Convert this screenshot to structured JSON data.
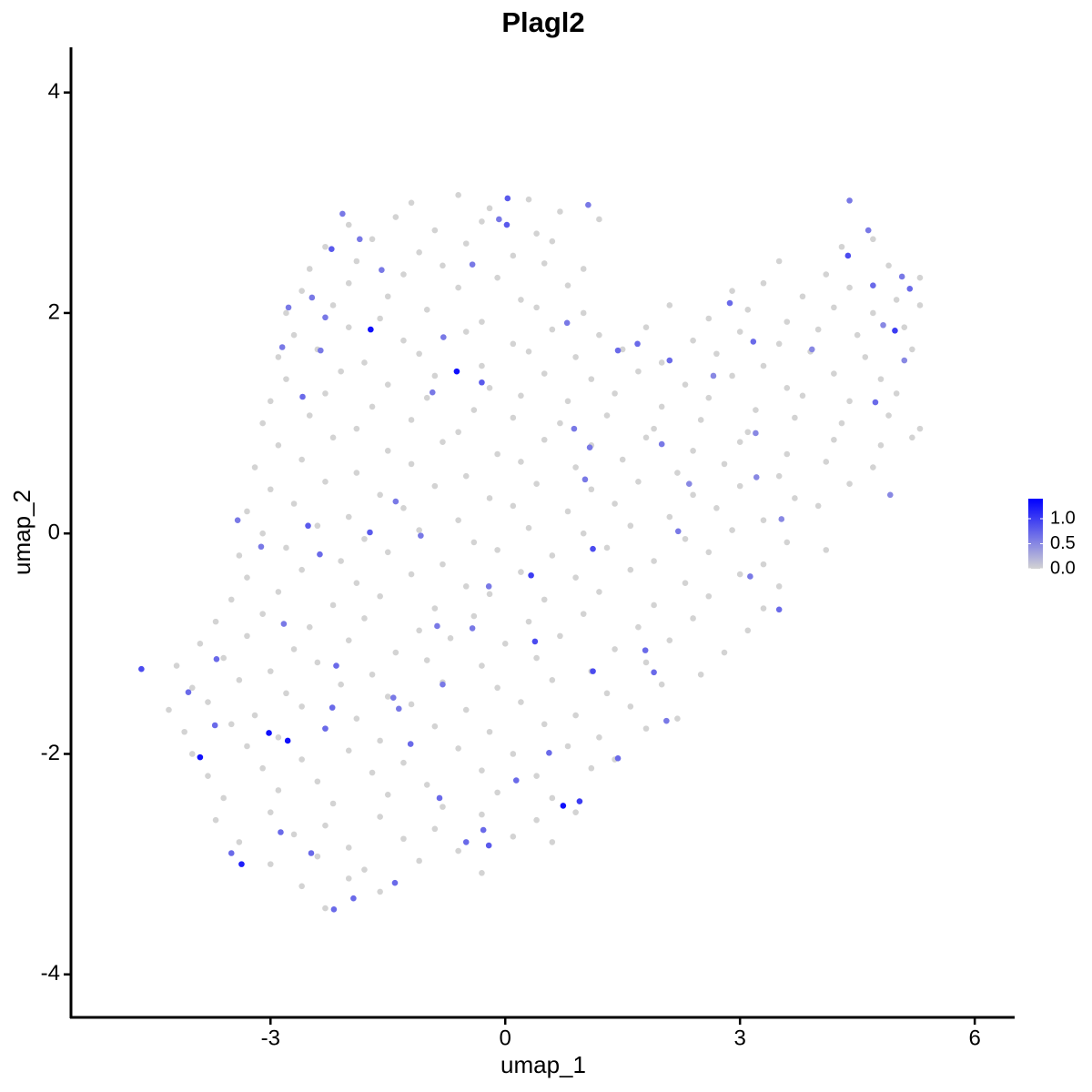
{
  "chart_data": {
    "type": "scatter",
    "title": "Plagl2",
    "x_label": "umap_1",
    "y_label": "umap_2",
    "xlim": [
      -5.55,
      6.51
    ],
    "ylim": [
      -4.39,
      4.41
    ],
    "xticks": [
      -3,
      0,
      3,
      6
    ],
    "yticks": [
      -4,
      -2,
      0,
      2,
      4
    ],
    "clim": [
      0,
      1.4
    ],
    "cticks": [
      {
        "value": 0,
        "label": "0.0"
      },
      {
        "value": 0.5,
        "label": "0.5"
      },
      {
        "value": 1,
        "label": "1.0"
      }
    ],
    "low_color": "#d3d3d3",
    "high_color": "#0000ff",
    "x": [
      -1.2,
      -0.6,
      -0.2,
      0.3,
      0.7,
      -2.0,
      -1.4,
      -0.9,
      -0.3,
      0.4,
      1.2,
      -2.3,
      -1.7,
      -1.1,
      -0.5,
      0.1,
      0.6,
      4.3,
      4.7,
      -2.5,
      -1.9,
      -1.3,
      -0.8,
      -0.1,
      0.5,
      1.0,
      3.5,
      4.1,
      4.9,
      5.3,
      -2.6,
      -2.0,
      -1.5,
      -0.6,
      0.2,
      0.8,
      2.9,
      3.3,
      3.8,
      4.4,
      5.0,
      -2.8,
      -2.2,
      -1.6,
      -1.0,
      -0.3,
      0.4,
      1.0,
      2.1,
      2.6,
      3.1,
      3.6,
      4.2,
      4.7,
      5.3,
      -2.7,
      -2.0,
      -1.3,
      -0.5,
      0.1,
      0.6,
      1.2,
      1.8,
      2.4,
      3.0,
      3.5,
      4.0,
      4.5,
      5.1,
      -2.9,
      -2.4,
      -1.8,
      -1.1,
      -0.3,
      0.3,
      0.9,
      1.5,
      2.0,
      2.7,
      3.3,
      3.9,
      4.6,
      5.2,
      -2.8,
      -2.1,
      -1.5,
      -0.9,
      -0.2,
      0.5,
      1.1,
      1.7,
      2.3,
      2.9,
      3.6,
      4.2,
      4.8,
      -3.0,
      -2.3,
      -1.7,
      -1.0,
      -0.4,
      0.2,
      0.8,
      1.4,
      2.0,
      2.6,
      3.2,
      3.8,
      4.4,
      5.0,
      -3.1,
      -2.5,
      -1.9,
      -1.2,
      -0.6,
      0.1,
      0.7,
      1.3,
      1.9,
      2.5,
      3.1,
      3.7,
      4.3,
      4.9,
      5.3,
      -2.9,
      -2.2,
      -1.5,
      -0.8,
      -0.1,
      0.5,
      1.1,
      1.8,
      2.4,
      3.0,
      3.6,
      4.2,
      4.8,
      5.2,
      -3.2,
      -2.6,
      -1.9,
      -1.2,
      -0.5,
      0.2,
      0.9,
      1.5,
      2.2,
      2.8,
      3.5,
      4.1,
      4.7,
      -3.0,
      -2.3,
      -1.6,
      -0.9,
      -0.2,
      0.4,
      1.1,
      1.7,
      2.4,
      3.0,
      3.7,
      4.4,
      -3.3,
      -2.7,
      -2.0,
      -1.3,
      -0.6,
      0.1,
      0.8,
      1.4,
      2.1,
      2.7,
      3.3,
      4.0,
      -3.1,
      -2.4,
      -1.8,
      -1.1,
      -0.4,
      0.3,
      1.0,
      1.6,
      2.3,
      2.9,
      3.6,
      -3.4,
      -2.8,
      -2.1,
      -1.5,
      -0.8,
      -0.1,
      0.6,
      1.3,
      1.9,
      2.6,
      3.3,
      4.1,
      -3.3,
      -2.6,
      -1.9,
      -1.2,
      -0.5,
      0.2,
      0.9,
      1.6,
      2.3,
      3.0,
      3.5,
      -3.5,
      -2.9,
      -2.2,
      -1.6,
      -0.9,
      -0.2,
      0.5,
      1.2,
      1.9,
      2.6,
      3.3,
      -3.7,
      -3.1,
      -2.5,
      -1.8,
      -1.1,
      -0.4,
      0.3,
      1.0,
      1.7,
      2.4,
      3.1,
      -3.9,
      -3.3,
      -2.7,
      -2.0,
      -1.4,
      -0.7,
      0.0,
      0.7,
      1.4,
      2.1,
      2.8,
      -4.2,
      -3.6,
      -3.0,
      -2.4,
      -1.7,
      -1.0,
      -0.3,
      0.4,
      1.1,
      1.8,
      2.5,
      -4.0,
      -3.4,
      -2.8,
      -2.1,
      -1.5,
      -0.8,
      -0.1,
      0.6,
      1.3,
      2.0,
      -4.3,
      -3.8,
      -3.2,
      -2.6,
      -1.9,
      -1.2,
      -0.5,
      0.2,
      0.9,
      1.6,
      2.2,
      -4.1,
      -3.5,
      -2.9,
      -2.3,
      -1.6,
      -0.9,
      -0.2,
      0.5,
      1.2,
      1.8,
      -4.0,
      -3.3,
      -2.6,
      -2.0,
      -1.3,
      -0.6,
      0.1,
      0.8,
      1.4,
      -3.8,
      -3.1,
      -2.4,
      -1.7,
      -1.0,
      -0.3,
      0.4,
      1.1,
      -3.6,
      -2.9,
      -2.2,
      -1.5,
      -0.8,
      -0.1,
      0.6,
      -3.7,
      -3.0,
      -2.3,
      -1.6,
      -0.9,
      -0.3,
      0.4,
      0.9,
      -3.4,
      -2.7,
      -2.0,
      -1.3,
      -0.6,
      0.1,
      0.6,
      -3.0,
      -2.4,
      -1.8,
      -1.1,
      -0.3,
      -2.6,
      -2.0,
      -1.6,
      -2.3,
      -1.72,
      -0.62,
      -3.02,
      -2.78,
      -3.9,
      -3.37,
      0.74,
      0.95,
      -4.65,
      0.33,
      1.12,
      1.12,
      4.98,
      4.38,
      -2.22,
      0.03,
      0.02,
      0.38,
      -1.73,
      -2.52,
      -0.3,
      -2.59,
      4.7,
      5.17,
      4.73,
      1.44,
      1.69,
      2.1,
      2.87,
      3.17,
      3.5,
      3.13,
      2.21,
      1.79,
      1.9,
      2.06,
      1.44,
      0.56,
      0.14,
      -0.28,
      -0.21,
      -0.5,
      -0.84,
      -1.41,
      -1.21,
      -1.94,
      -2.19,
      -2.48,
      -2.87,
      -3.5,
      -3.71,
      -4.05,
      -3.69,
      -2.21,
      -2.3,
      -3.42,
      -3.12,
      -2.37,
      -2.83,
      -2.16,
      -1.4,
      -1.08,
      -0.87,
      -0.42,
      -0.21,
      -0.8,
      -1.43,
      -1.36,
      -2.47,
      -2.3,
      -1.86,
      -1.58,
      -2.08,
      -2.77,
      -2.36,
      -2.85,
      -0.93,
      -0.79,
      0.79,
      -0.42,
      -0.08,
      1.06,
      0.88,
      1.08,
      1.02,
      2.0,
      2.35,
      3.21,
      3.2,
      3.92,
      4.92,
      5.1,
      4.83,
      4.64,
      4.4,
      5.07,
      3.53,
      2.66
    ],
    "y": [
      3.0,
      3.07,
      2.95,
      3.03,
      2.92,
      2.8,
      2.87,
      2.75,
      2.83,
      2.72,
      2.85,
      2.6,
      2.67,
      2.55,
      2.63,
      2.52,
      2.65,
      2.6,
      2.67,
      2.4,
      2.47,
      2.35,
      2.43,
      2.32,
      2.45,
      2.4,
      2.47,
      2.35,
      2.43,
      2.32,
      2.2,
      2.27,
      2.15,
      2.23,
      2.12,
      2.25,
      2.2,
      2.27,
      2.15,
      2.23,
      2.12,
      2.0,
      2.07,
      1.95,
      2.03,
      1.92,
      2.05,
      2.0,
      2.07,
      1.95,
      2.03,
      1.92,
      2.05,
      2.0,
      2.07,
      1.8,
      1.87,
      1.75,
      1.83,
      1.72,
      1.85,
      1.8,
      1.87,
      1.75,
      1.83,
      1.72,
      1.85,
      1.8,
      1.87,
      1.6,
      1.67,
      1.55,
      1.63,
      1.52,
      1.65,
      1.6,
      1.67,
      1.55,
      1.63,
      1.52,
      1.65,
      1.6,
      1.67,
      1.4,
      1.47,
      1.35,
      1.43,
      1.32,
      1.45,
      1.4,
      1.47,
      1.35,
      1.43,
      1.32,
      1.45,
      1.4,
      1.2,
      1.27,
      1.15,
      1.23,
      1.12,
      1.25,
      1.2,
      1.27,
      1.15,
      1.23,
      1.12,
      1.25,
      1.2,
      1.27,
      1.0,
      1.07,
      0.95,
      1.03,
      0.92,
      1.05,
      1.0,
      1.07,
      0.95,
      1.03,
      0.92,
      1.05,
      1.0,
      1.07,
      0.95,
      0.8,
      0.87,
      0.75,
      0.83,
      0.72,
      0.85,
      0.8,
      0.87,
      0.75,
      0.83,
      0.72,
      0.85,
      0.8,
      0.87,
      0.6,
      0.67,
      0.55,
      0.63,
      0.52,
      0.65,
      0.6,
      0.67,
      0.55,
      0.63,
      0.52,
      0.65,
      0.6,
      0.4,
      0.47,
      0.35,
      0.43,
      0.32,
      0.45,
      0.4,
      0.47,
      0.35,
      0.43,
      0.32,
      0.45,
      0.2,
      0.27,
      0.15,
      0.23,
      0.12,
      0.25,
      0.2,
      0.27,
      0.15,
      0.23,
      0.12,
      0.25,
      0,
      0.07,
      -0.05,
      0.03,
      -0.08,
      0.05,
      0,
      0.07,
      -0.05,
      0.03,
      -0.08,
      -0.2,
      -0.13,
      -0.25,
      -0.17,
      -0.28,
      -0.15,
      -0.2,
      -0.13,
      -0.25,
      -0.17,
      -0.28,
      -0.15,
      -0.4,
      -0.33,
      -0.45,
      -0.37,
      -0.48,
      -0.35,
      -0.4,
      -0.33,
      -0.45,
      -0.37,
      -0.48,
      -0.6,
      -0.53,
      -0.65,
      -0.57,
      -0.68,
      -0.55,
      -0.6,
      -0.53,
      -0.65,
      -0.57,
      -0.68,
      -0.8,
      -0.73,
      -0.85,
      -0.77,
      -0.88,
      -0.75,
      -0.8,
      -0.73,
      -0.85,
      -0.77,
      -0.88,
      -1.0,
      -0.93,
      -1.05,
      -0.97,
      -1.08,
      -0.95,
      -1.0,
      -0.93,
      -1.05,
      -0.97,
      -1.08,
      -1.2,
      -1.13,
      -1.25,
      -1.17,
      -1.28,
      -1.15,
      -1.2,
      -1.13,
      -1.25,
      -1.17,
      -1.28,
      -1.4,
      -1.33,
      -1.45,
      -1.37,
      -1.48,
      -1.35,
      -1.4,
      -1.33,
      -1.45,
      -1.37,
      -1.6,
      -1.53,
      -1.65,
      -1.57,
      -1.68,
      -1.55,
      -1.6,
      -1.53,
      -1.65,
      -1.57,
      -1.68,
      -1.8,
      -1.73,
      -1.85,
      -1.77,
      -1.88,
      -1.75,
      -1.8,
      -1.73,
      -1.85,
      -1.77,
      -2.0,
      -1.93,
      -2.05,
      -1.97,
      -2.08,
      -1.95,
      -2.0,
      -1.93,
      -2.05,
      -2.2,
      -2.13,
      -2.25,
      -2.17,
      -2.28,
      -2.15,
      -2.2,
      -2.13,
      -2.4,
      -2.33,
      -2.45,
      -2.37,
      -2.48,
      -2.35,
      -2.4,
      -2.6,
      -2.53,
      -2.65,
      -2.57,
      -2.68,
      -2.55,
      -2.6,
      -2.53,
      -2.8,
      -2.73,
      -2.85,
      -2.77,
      -2.88,
      -2.75,
      -2.8,
      -3.0,
      -2.93,
      -3.05,
      -2.97,
      -3.08,
      -3.2,
      -3.13,
      -3.25,
      -3.4,
      1.85,
      1.47,
      -1.81,
      -1.88,
      -2.03,
      -3.0,
      -2.47,
      -2.43,
      -1.23,
      -0.38,
      -0.14,
      -1.25,
      1.84,
      2.52,
      2.58,
      3.04,
      2.8,
      -0.98,
      0.01,
      0.07,
      1.37,
      1.24,
      2.25,
      2.22,
      1.19,
      1.66,
      1.72,
      1.57,
      2.09,
      1.74,
      -0.69,
      -0.39,
      0.02,
      -1.06,
      -1.26,
      -1.7,
      -2.04,
      -1.99,
      -2.24,
      -2.69,
      -2.83,
      -2.8,
      -2.4,
      -3.17,
      -1.91,
      -3.31,
      -3.41,
      -2.9,
      -2.71,
      -2.9,
      -1.74,
      -1.44,
      -1.14,
      -1.58,
      -1.77,
      0.12,
      -0.12,
      -0.19,
      -0.82,
      -1.2,
      0.29,
      -0.02,
      -0.84,
      -0.86,
      -0.48,
      -1.37,
      -1.49,
      -1.59,
      2.14,
      1.96,
      2.67,
      2.39,
      2.9,
      2.05,
      1.66,
      1.69,
      1.28,
      1.78,
      1.91,
      2.44,
      2.85,
      2.98,
      0.95,
      0.78,
      0.49,
      0.81,
      0.45,
      0.51,
      0.91,
      1.67,
      0.35,
      1.57,
      1.89,
      2.75,
      3.02,
      2.33,
      0.13,
      1.43
    ],
    "values": [
      0,
      0,
      0,
      0,
      0,
      0,
      0,
      0,
      0,
      0,
      0,
      0,
      0,
      0,
      0,
      0,
      0,
      0,
      0,
      0,
      0,
      0,
      0,
      0,
      0,
      0,
      0,
      0,
      0,
      0,
      0,
      0,
      0,
      0,
      0,
      0,
      0,
      0,
      0,
      0,
      0,
      0,
      0,
      0,
      0,
      0,
      0,
      0,
      0,
      0,
      0,
      0,
      0,
      0,
      0,
      0,
      0,
      0,
      0,
      0,
      0,
      0,
      0,
      0,
      0,
      0,
      0,
      0,
      0,
      0,
      0,
      0,
      0,
      0,
      0,
      0,
      0,
      0,
      0,
      0,
      0,
      0,
      0,
      0,
      0,
      0,
      0,
      0,
      0,
      0,
      0,
      0,
      0,
      0,
      0,
      0,
      0,
      0,
      0,
      0,
      0,
      0,
      0,
      0,
      0,
      0,
      0,
      0,
      0,
      0,
      0,
      0,
      0,
      0,
      0,
      0,
      0,
      0,
      0,
      0,
      0,
      0,
      0,
      0,
      0,
      0,
      0,
      0,
      0,
      0,
      0,
      0,
      0,
      0,
      0,
      0,
      0,
      0,
      0,
      0,
      0,
      0,
      0,
      0,
      0,
      0,
      0,
      0,
      0,
      0,
      0,
      0,
      0,
      0,
      0,
      0,
      0,
      0,
      0,
      0,
      0,
      0,
      0,
      0,
      0,
      0,
      0,
      0,
      0,
      0,
      0,
      0,
      0,
      0,
      0,
      0,
      0,
      0,
      0,
      0,
      0,
      0,
      0,
      0,
      0,
      0,
      0,
      0,
      0,
      0,
      0,
      0,
      0,
      0,
      0,
      0,
      0,
      0,
      0,
      0,
      0,
      0,
      0,
      0,
      0,
      0,
      0,
      0,
      0,
      0,
      0,
      0,
      0,
      0,
      0,
      0,
      0,
      0,
      0,
      0,
      0,
      0,
      0,
      0,
      0,
      0,
      0,
      0,
      0,
      0,
      0,
      0,
      0,
      0,
      0,
      0,
      0,
      0,
      0,
      0,
      0,
      0,
      0,
      0,
      0,
      0,
      0,
      0,
      0,
      0,
      0,
      0,
      0,
      0,
      0,
      0,
      0,
      0,
      0,
      0,
      0,
      0,
      0,
      0,
      0,
      0,
      0,
      0,
      0,
      0,
      0,
      0,
      0,
      0,
      0,
      0,
      0,
      0,
      0,
      0,
      0,
      0,
      0,
      0,
      0,
      0,
      0,
      0,
      0,
      0,
      0,
      0,
      0,
      0,
      0,
      0,
      0,
      0,
      0,
      0,
      0,
      0,
      0,
      0,
      0,
      0,
      0,
      0,
      0,
      0,
      0,
      0,
      0,
      0,
      0,
      0,
      0,
      0,
      0,
      0,
      0,
      0,
      0,
      0,
      0,
      0,
      0,
      0,
      0,
      0,
      0,
      0,
      0,
      1.3,
      1.3,
      1.3,
      1.3,
      1.3,
      1.2,
      1.3,
      1.0,
      0.9,
      1.0,
      0.9,
      0.9,
      1.0,
      0.9,
      0.8,
      0.8,
      0.8,
      0.9,
      0.8,
      0.8,
      0.8,
      0.7,
      0.7,
      0.7,
      0.7,
      0.7,
      0.7,
      0.7,
      0.7,
      0.7,
      0.7,
      0.6,
      0.6,
      0.7,
      0.7,
      0.6,
      0.7,
      0.7,
      0.7,
      0.7,
      0.8,
      0.7,
      0.7,
      0.7,
      0.7,
      0.7,
      0.7,
      0.7,
      0.7,
      0.7,
      0.7,
      0.7,
      0.7,
      0.7,
      0.7,
      0.6,
      0.6,
      0.7,
      0.6,
      0.7,
      0.6,
      0.6,
      0.6,
      0.6,
      0.6,
      0.6,
      0.6,
      0.6,
      0.6,
      0.6,
      0.6,
      0.6,
      0.6,
      0.6,
      0.6,
      0.6,
      0.6,
      0.6,
      0.6,
      0.6,
      0.6,
      0.6,
      0.6,
      0.6,
      0.6,
      0.6,
      0.5,
      0.5,
      0.5,
      0.5,
      0.5,
      0.5,
      0.5,
      0.6,
      0.6,
      0.6,
      0.5,
      0.5
    ]
  }
}
